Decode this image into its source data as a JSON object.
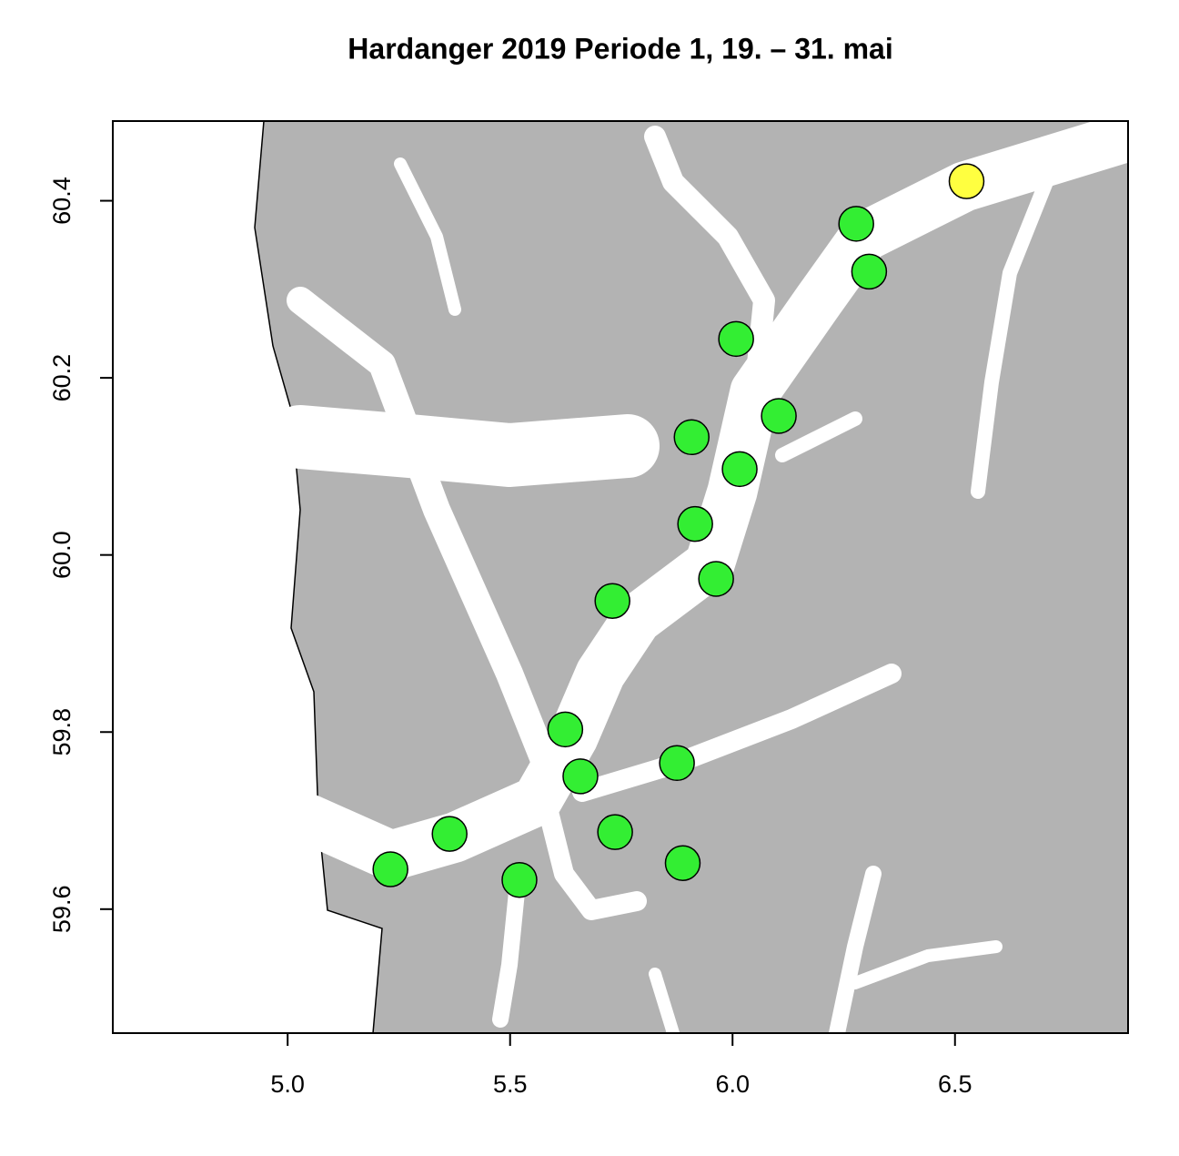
{
  "chart_data": {
    "type": "scatter",
    "title": "Hardanger 2019 Periode 1, 19. – 31. mai",
    "x": [
      6.526,
      6.278,
      6.307,
      6.008,
      6.104,
      5.908,
      6.016,
      5.916,
      5.963,
      5.73,
      5.624,
      5.875,
      5.658,
      5.736,
      5.888,
      5.364,
      5.231,
      5.521
    ],
    "values": [
      60.422,
      60.374,
      60.32,
      60.244,
      60.157,
      60.133,
      60.097,
      60.035,
      59.973,
      59.948,
      59.803,
      59.765,
      59.75,
      59.687,
      59.652,
      59.685,
      59.645,
      59.633
    ],
    "colors": [
      "#ffff40",
      "#33ee33",
      "#33ee33",
      "#33ee33",
      "#33ee33",
      "#33ee33",
      "#33ee33",
      "#33ee33",
      "#33ee33",
      "#33ee33",
      "#33ee33",
      "#33ee33",
      "#33ee33",
      "#33ee33",
      "#33ee33",
      "#33ee33",
      "#33ee33",
      "#33ee33"
    ],
    "xlim": [
      4.607,
      6.889
    ],
    "ylim": [
      59.46,
      60.49
    ],
    "xticks": [
      {
        "value": 5,
        "label": "5.0"
      },
      5.5,
      {
        "value": 6,
        "label": "6.0"
      },
      6.5
    ],
    "yticks": [
      59.6,
      59.8,
      {
        "value": 60,
        "label": "60.0"
      },
      60.2,
      60.4
    ]
  }
}
